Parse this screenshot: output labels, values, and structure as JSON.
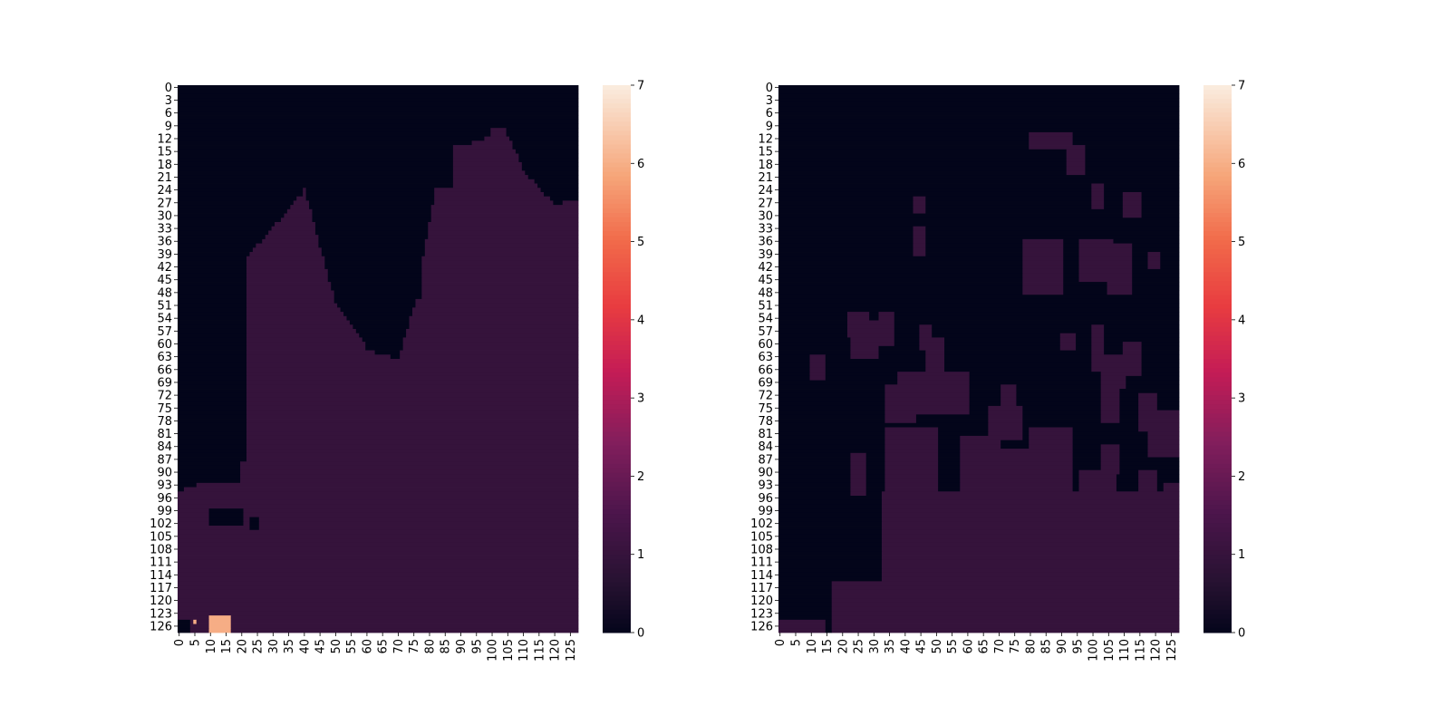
{
  "chart_data": [
    {
      "type": "heatmap",
      "title": "",
      "xlabel": "",
      "ylabel": "",
      "rows": 128,
      "cols": 128,
      "value_range": [
        0,
        7
      ],
      "colormap": "rocket",
      "x_tick_labels": [
        "0",
        "5",
        "10",
        "15",
        "20",
        "25",
        "30",
        "35",
        "40",
        "45",
        "50",
        "55",
        "60",
        "65",
        "70",
        "75",
        "80",
        "85",
        "90",
        "95",
        "100",
        "105",
        "110",
        "115",
        "120",
        "125"
      ],
      "y_tick_labels": [
        "0",
        "3",
        "6",
        "9",
        "12",
        "15",
        "18",
        "21",
        "24",
        "27",
        "30",
        "33",
        "36",
        "39",
        "42",
        "45",
        "48",
        "51",
        "54",
        "57",
        "60",
        "63",
        "66",
        "69",
        "72",
        "75",
        "78",
        "81",
        "84",
        "87",
        "90",
        "93",
        "96",
        "99",
        "102",
        "105",
        "108",
        "111",
        "114",
        "117",
        "120",
        "123",
        "126"
      ],
      "colorbar_ticks": [
        "0",
        "1",
        "2",
        "3",
        "4",
        "5",
        "6",
        "7"
      ],
      "regions": [
        {
          "value": 1,
          "description": "upper-left water region and upper-right lobe in row 0-100 band"
        },
        {
          "value": 0,
          "description": "background"
        },
        {
          "value": 6,
          "description": "small patch near rows 124-127, cols 8-18"
        }
      ]
    },
    {
      "type": "heatmap",
      "title": "",
      "xlabel": "",
      "ylabel": "",
      "rows": 128,
      "cols": 128,
      "value_range": [
        0,
        7
      ],
      "colormap": "rocket",
      "x_tick_labels": [
        "0",
        "5",
        "10",
        "15",
        "20",
        "25",
        "30",
        "35",
        "40",
        "45",
        "50",
        "55",
        "60",
        "65",
        "70",
        "75",
        "80",
        "85",
        "90",
        "95",
        "100",
        "105",
        "110",
        "115",
        "120",
        "125"
      ],
      "y_tick_labels": [
        "0",
        "3",
        "6",
        "9",
        "12",
        "15",
        "18",
        "21",
        "24",
        "27",
        "30",
        "33",
        "36",
        "39",
        "42",
        "45",
        "48",
        "51",
        "54",
        "57",
        "60",
        "63",
        "66",
        "69",
        "72",
        "75",
        "78",
        "81",
        "84",
        "87",
        "90",
        "93",
        "96",
        "99",
        "102",
        "105",
        "108",
        "111",
        "114",
        "117",
        "120",
        "123",
        "126"
      ],
      "colorbar_ticks": [
        "0",
        "1",
        "2",
        "3",
        "4",
        "5",
        "6",
        "7"
      ],
      "regions": [
        {
          "value": 1,
          "description": "scattered patches; mostly filled in lower rows 90-127"
        },
        {
          "value": 0,
          "description": "background"
        }
      ]
    }
  ]
}
